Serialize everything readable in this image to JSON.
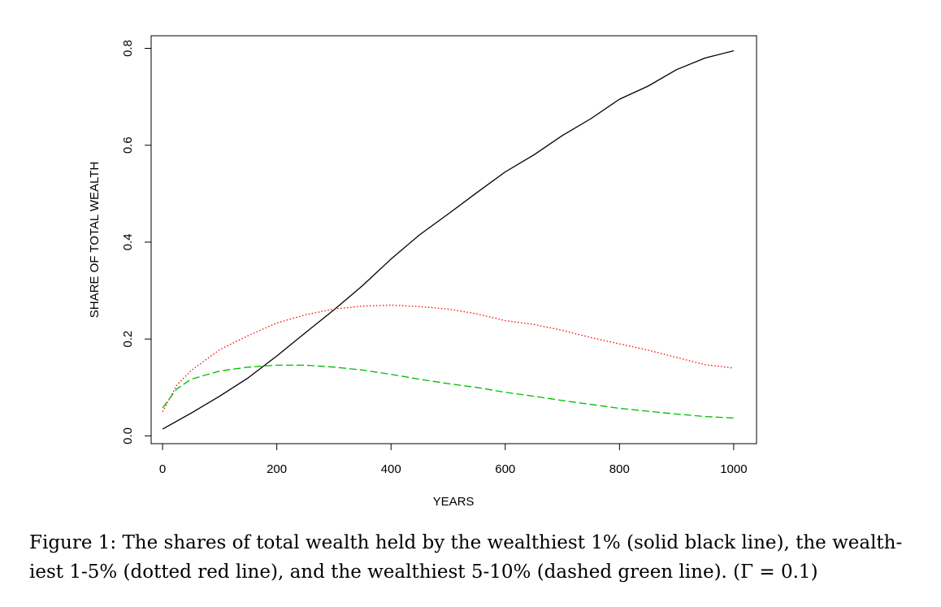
{
  "chart_data": {
    "type": "line",
    "xlabel": "YEARS",
    "ylabel": "SHARE OF TOTAL WEALTH",
    "xlim": [
      -20,
      1040
    ],
    "ylim": [
      -0.016,
      0.826
    ],
    "xticks": [
      0,
      200,
      400,
      600,
      800,
      1000
    ],
    "xtick_labels": [
      "0",
      "200",
      "400",
      "600",
      "800",
      "1000"
    ],
    "yticks": [
      0.0,
      0.2,
      0.4,
      0.6,
      0.8
    ],
    "ytick_labels": [
      "0.0",
      "0.2",
      "0.4",
      "0.6",
      "0.8"
    ],
    "grid": false,
    "legend": "none",
    "series": [
      {
        "style": "solid",
        "color": "#000000",
        "x": [
          0,
          50,
          100,
          150,
          200,
          250,
          300,
          350,
          400,
          450,
          500,
          550,
          600,
          650,
          700,
          750,
          800,
          850,
          900,
          950,
          1000
        ],
        "y": [
          0.014,
          0.047,
          0.082,
          0.12,
          0.165,
          0.213,
          0.26,
          0.31,
          0.365,
          0.415,
          0.458,
          0.502,
          0.545,
          0.58,
          0.62,
          0.655,
          0.695,
          0.722,
          0.756,
          0.78,
          0.795
        ]
      },
      {
        "style": "dotted",
        "color": "#ff0000",
        "x": [
          0,
          25,
          50,
          100,
          150,
          200,
          250,
          300,
          350,
          400,
          450,
          500,
          550,
          600,
          650,
          700,
          750,
          800,
          850,
          900,
          950,
          1000
        ],
        "y": [
          0.05,
          0.105,
          0.135,
          0.178,
          0.207,
          0.233,
          0.25,
          0.262,
          0.268,
          0.27,
          0.267,
          0.262,
          0.252,
          0.238,
          0.23,
          0.218,
          0.203,
          0.19,
          0.177,
          0.162,
          0.147,
          0.14
        ]
      },
      {
        "style": "dashed",
        "color": "#00bb00",
        "x": [
          0,
          25,
          50,
          100,
          150,
          200,
          250,
          300,
          350,
          400,
          450,
          500,
          550,
          600,
          650,
          700,
          750,
          800,
          850,
          900,
          950,
          1000
        ],
        "y": [
          0.058,
          0.097,
          0.117,
          0.134,
          0.142,
          0.146,
          0.146,
          0.142,
          0.136,
          0.127,
          0.117,
          0.108,
          0.1,
          0.09,
          0.082,
          0.073,
          0.065,
          0.057,
          0.051,
          0.045,
          0.04,
          0.037
        ]
      }
    ]
  },
  "caption": {
    "line1": "Figure 1: The shares of total wealth held by the wealthiest 1% (solid black line), the wealth-",
    "line2": "iest 1-5% (dotted red line), and the wealthiest 5-10% (dashed green line). (Γ = 0.1)"
  }
}
